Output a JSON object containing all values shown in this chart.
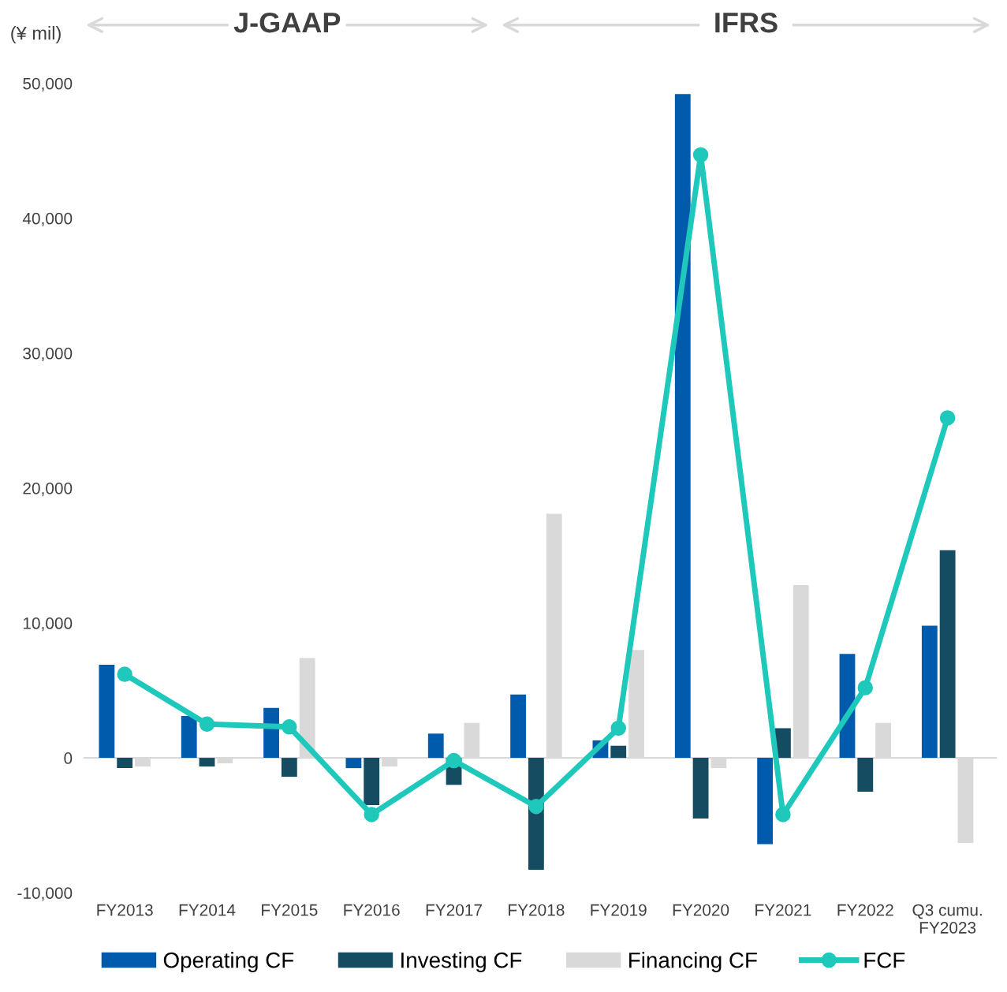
{
  "chart_data": {
    "type": "bar",
    "ylabel": "(¥ mil)",
    "annotations": [
      "J-GAAP",
      "IFRS"
    ],
    "categories": [
      "FY2013",
      "FY2014",
      "FY2015",
      "FY2016",
      "FY2017",
      "FY2018",
      "FY2019",
      "FY2020",
      "FY2021",
      "FY2022",
      "Q3 cumu.\nFY2023"
    ],
    "series": [
      {
        "name": "Operating CF",
        "color": "#005bac",
        "values": [
          6900,
          3100,
          3700,
          -760,
          1800,
          4700,
          1300,
          49200,
          -6400,
          7700,
          9800
        ]
      },
      {
        "name": "Investing CF",
        "color": "#154c62",
        "values": [
          -760,
          -640,
          -1400,
          -3500,
          -2000,
          -8300,
          900,
          -4500,
          2200,
          -2500,
          15400
        ]
      },
      {
        "name": "Financing CF",
        "color": "#d9d9d9",
        "values": [
          -640,
          -400,
          7400,
          -640,
          2600,
          18100,
          8000,
          -760,
          12800,
          2600,
          -6300
        ]
      },
      {
        "name": "FCF",
        "type": "line",
        "color": "#1ec8bb",
        "marker": "circle",
        "values": [
          6200,
          2500,
          2300,
          -4200,
          -200,
          -3600,
          2200,
          44700,
          -4200,
          5200,
          25200
        ]
      }
    ],
    "ylim": [
      -10000,
      50000
    ],
    "yticks": [
      {
        "value": -10000,
        "label": "-10,000"
      },
      {
        "value": 0,
        "label": "0"
      },
      {
        "value": 10000,
        "label": "10,000"
      },
      {
        "value": 20000,
        "label": "20,000"
      },
      {
        "value": 30000,
        "label": "30,000"
      },
      {
        "value": 40000,
        "label": "40,000"
      },
      {
        "value": 50000,
        "label": "50,000"
      }
    ],
    "ref_lines": [
      {
        "axis": "y",
        "value": 0,
        "color": "#d9d9d9"
      }
    ],
    "grid": false,
    "legend": "bottom"
  }
}
